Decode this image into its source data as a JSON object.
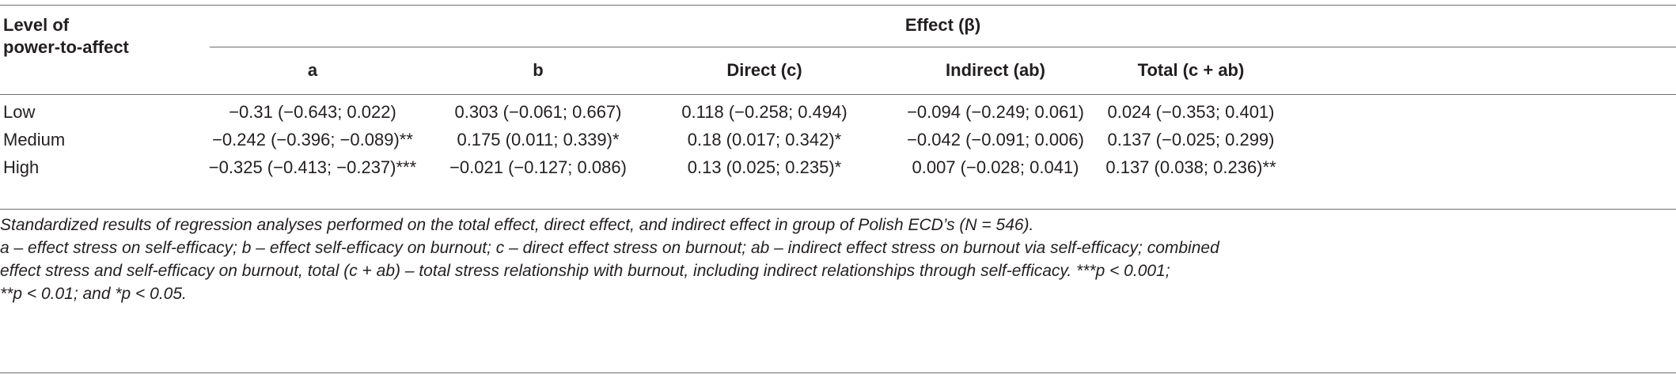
{
  "table": {
    "row_header_label": "Level of power-to-affect",
    "row_header_line1": "Level of",
    "row_header_line2": "power-to-affect",
    "group_header": "Effect (β)",
    "columns": [
      "a",
      "b",
      "Direct (c)",
      "Indirect (ab)",
      "Total (c + ab)"
    ],
    "rows": [
      {
        "label": "Low",
        "cells": [
          "−0.31 (−0.643; 0.022)",
          "0.303 (−0.061; 0.667)",
          "0.118 (−0.258; 0.494)",
          "−0.094 (−0.249; 0.061)",
          "0.024 (−0.353; 0.401)"
        ]
      },
      {
        "label": "Medium",
        "cells": [
          "−0.242 (−0.396; −0.089)**",
          "0.175 (0.011; 0.339)*",
          "0.18 (0.017; 0.342)*",
          "−0.042 (−0.091; 0.006)",
          "0.137 (−0.025; 0.299)"
        ]
      },
      {
        "label": "High",
        "cells": [
          "−0.325 (−0.413; −0.237)***",
          "−0.021 (−0.127; 0.086)",
          "0.13 (0.025; 0.235)*",
          "0.007 (−0.028; 0.041)",
          "0.137 (0.038; 0.236)**"
        ]
      }
    ]
  },
  "footnotes": {
    "line1": "Standardized results of regression analyses performed on the total effect, direct effect, and indirect effect in group of Polish ECD’s (N = 546).",
    "line2": "a – effect stress on self-efficacy; b – effect self-efficacy on burnout; c – direct effect stress on burnout; ab – indirect effect stress on burnout via self-efficacy; combined",
    "line3": "effect stress and self-efficacy on burnout, total (c + ab) – total stress relationship with burnout, including indirect relationships through self-efficacy. ***p < 0.001;",
    "line4": "**p < 0.01; and *p < 0.05."
  }
}
